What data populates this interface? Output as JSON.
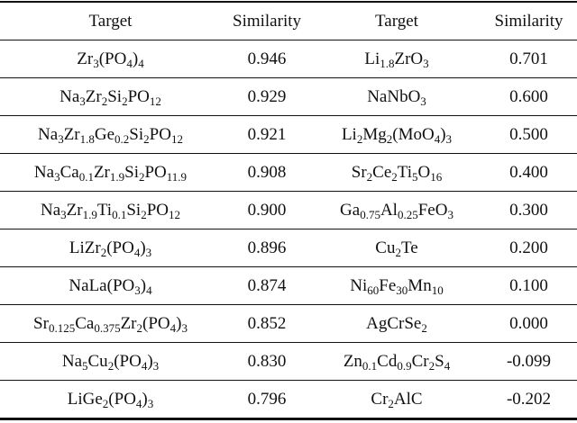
{
  "table": {
    "header": [
      "Target",
      "Similarity",
      "Target",
      "Similarity"
    ],
    "rows": [
      [
        "Zr3(PO4)4",
        "0.946",
        "Li1.8ZrO3",
        "0.701"
      ],
      [
        "Na3Zr2Si2PO12",
        "0.929",
        "NaNbO3",
        "0.600"
      ],
      [
        "Na3Zr1.8Ge0.2Si2PO12",
        "0.921",
        "Li2Mg2(MoO4)3",
        "0.500"
      ],
      [
        "Na3Ca0.1Zr1.9Si2PO11.9",
        "0.908",
        "Sr2Ce2Ti5O16",
        "0.400"
      ],
      [
        "Na3Zr1.9Ti0.1Si2PO12",
        "0.900",
        "Ga0.75Al0.25FeO3",
        "0.300"
      ],
      [
        "LiZr2(PO4)3",
        "0.896",
        "Cu2Te",
        "0.200"
      ],
      [
        "NaLa(PO3)4",
        "0.874",
        "Ni60Fe30Mn10",
        "0.100"
      ],
      [
        "Sr0.125Ca0.375Zr2(PO4)3",
        "0.852",
        "AgCrSe2",
        "0.000"
      ],
      [
        "Na5Cu2(PO4)3",
        "0.830",
        "Zn0.1Cd0.9Cr2S4",
        "-0.099"
      ],
      [
        "LiGe2(PO4)3",
        "0.796",
        "Cr2AlC",
        "-0.202"
      ]
    ]
  }
}
